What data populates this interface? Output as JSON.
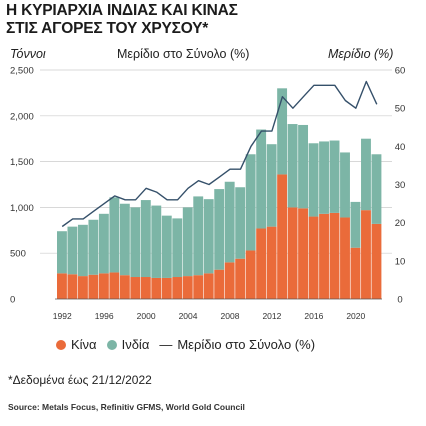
{
  "title_line1": "Η ΚΥΡΙΑΡΧΙΑ ΙΝΔΙΑΣ ΚΑΙ ΚΙΝΑΣ",
  "title_line2": "ΣΤΙΣ ΑΓΟΡΕΣ ΤΟΥ ΧΡΥΣΟΥ*",
  "left_axis_header": "Τόννοι",
  "center_header": "Μερίδιο στο Σύνολο (%)",
  "right_axis_header": "Μερίδιο (%)",
  "legend": {
    "china": "Κίνα",
    "india": "Ινδία",
    "share_dash": "—",
    "share": "Μερίδιο στο Σύνολο (%)"
  },
  "note": "*Δεδομένα έως 21/12/2022",
  "source": "Source: Metals Focus, Refinitiv GFMS, World Gold Council",
  "colors": {
    "china": "#ea6b3a",
    "india": "#7cb5a6",
    "share_line": "#35506a",
    "grid": "#cccccc"
  },
  "chart_data": {
    "type": "bar",
    "stacked": true,
    "x": [
      1992,
      1993,
      1994,
      1995,
      1996,
      1997,
      1998,
      1999,
      2000,
      2001,
      2002,
      2003,
      2004,
      2005,
      2006,
      2007,
      2008,
      2009,
      2010,
      2011,
      2012,
      2013,
      2014,
      2015,
      2016,
      2017,
      2018,
      2019,
      2020,
      2021,
      2022
    ],
    "x_ticks": [
      "1992",
      "1996",
      "2000",
      "2004",
      "2008",
      "2012",
      "2016",
      "2020"
    ],
    "series": [
      {
        "name": "Κίνα",
        "axis": "left",
        "values": [
          280,
          270,
          250,
          265,
          280,
          290,
          260,
          240,
          240,
          230,
          230,
          240,
          250,
          260,
          280,
          320,
          400,
          440,
          530,
          770,
          790,
          1360,
          1000,
          990,
          900,
          930,
          940,
          890,
          560,
          970,
          820
        ]
      },
      {
        "name": "Ινδία",
        "axis": "left",
        "values": [
          460,
          520,
          560,
          600,
          650,
          820,
          780,
          760,
          840,
          790,
          680,
          640,
          750,
          860,
          810,
          880,
          880,
          780,
          1050,
          1080,
          900,
          940,
          910,
          910,
          800,
          790,
          790,
          710,
          500,
          780,
          760
        ]
      },
      {
        "name": "Μερίδιο στο Σύνολο (%)",
        "axis": "right",
        "type": "line",
        "values": [
          19,
          21,
          21,
          23,
          25,
          27,
          26,
          26,
          29,
          28,
          26,
          26,
          29,
          31,
          30,
          32,
          34,
          34,
          40,
          44,
          44,
          53,
          50,
          53,
          56,
          56,
          56,
          52,
          50,
          57,
          51
        ]
      }
    ],
    "y_left": {
      "min": 0,
      "max": 2500,
      "ticks": [
        0,
        500,
        1000,
        1500,
        2000,
        2500
      ],
      "tick_labels": [
        "0",
        "500",
        "1,000",
        "1,500",
        "2,000",
        "2,500"
      ]
    },
    "y_right": {
      "min": 0,
      "max": 60,
      "ticks": [
        0,
        10,
        20,
        30,
        40,
        50,
        60
      ],
      "tick_labels": [
        "0",
        "10",
        "20",
        "30",
        "40",
        "50",
        "60"
      ]
    },
    "grid": true
  }
}
